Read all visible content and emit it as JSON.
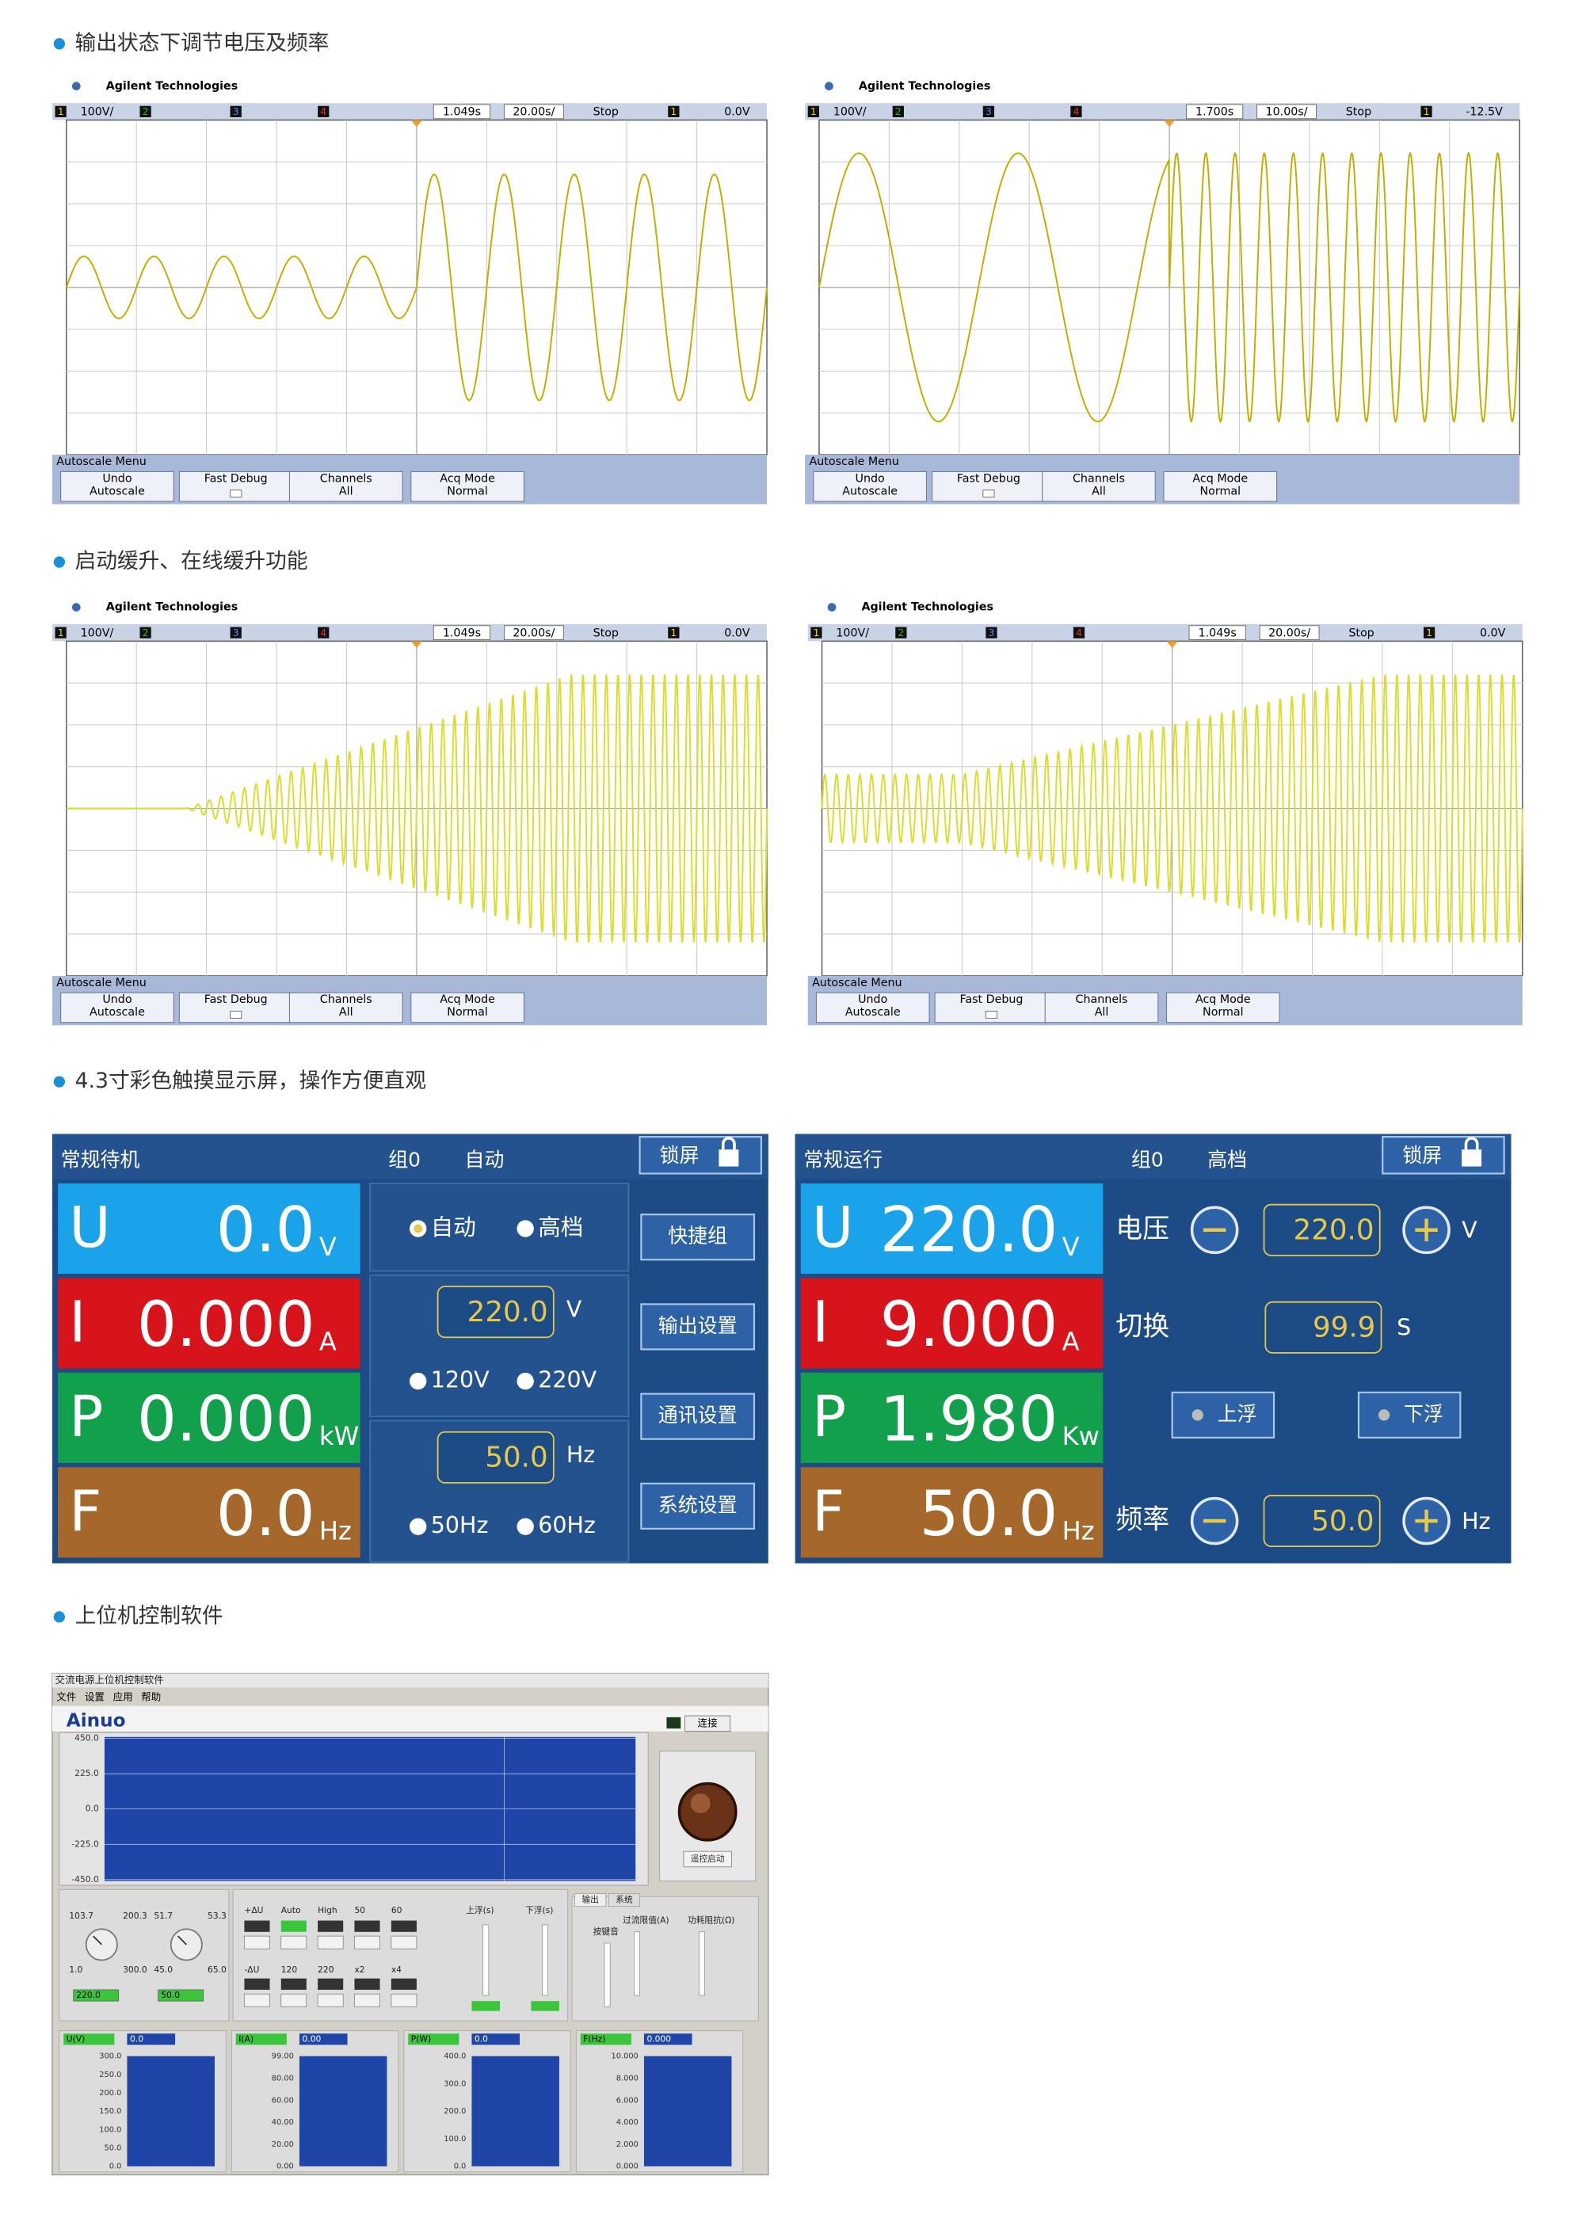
{
  "headings": [
    "输出状态下调节电压及频率",
    "启动缓升、在线缓升功能",
    "4.3寸彩色触摸显示屏，操作方便直观",
    "上位机控制软件"
  ],
  "scopes": [
    {
      "brand": "Agilent Technologies",
      "channels": [
        "1",
        "2",
        "3",
        "4"
      ],
      "scale": "100V/",
      "delay": "1.049s",
      "timebase": "20.00s/",
      "mode": "Stop",
      "trigger_channel": "1",
      "trigger_level": "0.0V",
      "menu_title": "Autoscale Menu",
      "buttons": [
        [
          "Undo",
          "Autoscale"
        ],
        [
          "Fast Debug"
        ],
        [
          "Channels",
          "All"
        ],
        [
          "Acq Mode",
          "Normal"
        ]
      ]
    },
    {
      "brand": "Agilent Technologies",
      "channels": [
        "1",
        "2",
        "3",
        "4"
      ],
      "scale": "100V/",
      "delay": "1.700s",
      "timebase": "10.00s/",
      "mode": "Stop",
      "trigger_channel": "1",
      "trigger_level": "-12.5V",
      "menu_title": "Autoscale Menu",
      "buttons": [
        [
          "Undo",
          "Autoscale"
        ],
        [
          "Fast Debug"
        ],
        [
          "Channels",
          "All"
        ],
        [
          "Acq Mode",
          "Normal"
        ]
      ]
    },
    {
      "brand": "Agilent Technologies",
      "channels": [
        "1",
        "2",
        "3",
        "4"
      ],
      "scale": "100V/",
      "delay": "1.049s",
      "timebase": "20.00s/",
      "mode": "Stop",
      "trigger_channel": "1",
      "trigger_level": "0.0V",
      "menu_title": "Autoscale Menu",
      "buttons": [
        [
          "Undo",
          "Autoscale"
        ],
        [
          "Fast Debug"
        ],
        [
          "Channels",
          "All"
        ],
        [
          "Acq Mode",
          "Normal"
        ]
      ]
    },
    {
      "brand": "Agilent Technologies",
      "channels": [
        "1",
        "2",
        "3",
        "4"
      ],
      "scale": "100V/",
      "delay": "1.049s",
      "timebase": "20.00s/",
      "mode": "Stop",
      "trigger_channel": "1",
      "trigger_level": "0.0V",
      "menu_title": "Autoscale Menu",
      "buttons": [
        [
          "Undo",
          "Autoscale"
        ],
        [
          "Fast Debug"
        ],
        [
          "Channels",
          "All"
        ],
        [
          "Acq Mode",
          "Normal"
        ]
      ]
    }
  ],
  "touch_screens": [
    {
      "status": "常规待机",
      "group": "组0",
      "mode": "自动",
      "lock": "锁屏",
      "readings": [
        {
          "symbol": "U",
          "value": "0.0",
          "unit": "V"
        },
        {
          "symbol": "I",
          "value": "0.000",
          "unit": "A"
        },
        {
          "symbol": "P",
          "value": "0.000",
          "unit": "kW"
        },
        {
          "symbol": "F",
          "value": "0.0",
          "unit": "Hz"
        }
      ],
      "range_options": [
        "自动",
        "高档"
      ],
      "voltage": {
        "value": "220.0",
        "unit": "V",
        "options": [
          "120V",
          "220V"
        ]
      },
      "frequency": {
        "value": "50.0",
        "unit": "Hz",
        "options": [
          "50Hz",
          "60Hz"
        ]
      },
      "menu": [
        "快捷组",
        "输出设置",
        "通讯设置",
        "系统设置"
      ]
    },
    {
      "status": "常规运行",
      "group": "组0",
      "mode": "高档",
      "lock": "锁屏",
      "readings": [
        {
          "symbol": "U",
          "value": "220.0",
          "unit": "V"
        },
        {
          "symbol": "I",
          "value": "9.000",
          "unit": "A"
        },
        {
          "symbol": "P",
          "value": "1.980",
          "unit": "Kw"
        },
        {
          "symbol": "F",
          "value": "50.0",
          "unit": "Hz"
        }
      ],
      "controls": [
        {
          "label": "电压",
          "value": "220.0",
          "unit": "V"
        },
        {
          "label": "切换",
          "value": "99.9",
          "unit": "S"
        },
        {
          "label": "频率",
          "value": "50.0",
          "unit": "Hz"
        }
      ],
      "float_buttons": [
        "上浮",
        "下浮"
      ]
    }
  ],
  "software": {
    "title": "交流电源上位机控制软件",
    "menu": [
      "文件",
      "设置",
      "应用",
      "帮助"
    ],
    "logo": "Ainuo",
    "connect": "连接",
    "graph_ticks": [
      "450.0",
      "225.0",
      "0.0",
      "-225.0",
      "-450.0"
    ],
    "remote_button": "遥控启动",
    "knobs": [
      {
        "labels": [
          "103.7",
          "200.3",
          "1.0",
          "300.0"
        ],
        "display": "220.0"
      },
      {
        "labels": [
          "51.7",
          "53.3",
          "45.0",
          "65.0"
        ],
        "display": "50.0"
      }
    ],
    "switch_labels_top": [
      "+ΔU",
      "Auto",
      "High",
      "50",
      "60"
    ],
    "switch_labels_bottom": [
      "-ΔU",
      "120",
      "220",
      "x2",
      "x4"
    ],
    "slider_labels": [
      "上浮(s)",
      "下浮(s)"
    ],
    "tabs": [
      "输出",
      "系统"
    ],
    "limit_labels": [
      "按键音",
      "过流限值(A)",
      "功耗阻抗(Ω)"
    ],
    "meters": [
      {
        "name": "U(V)",
        "value": "0.0",
        "ticks": [
          "300.0",
          "250.0",
          "200.0",
          "150.0",
          "100.0",
          "50.0",
          "0.0"
        ]
      },
      {
        "name": "I(A)",
        "value": "0.00",
        "ticks": [
          "99.00",
          "80.00",
          "60.00",
          "40.00",
          "20.00",
          "0.00"
        ]
      },
      {
        "name": "P(W)",
        "value": "0.0",
        "ticks": [
          "400.0",
          "300.0",
          "200.0",
          "100.0",
          "0.0"
        ]
      },
      {
        "name": "F(Hz)",
        "value": "0.000",
        "ticks": [
          "10.000",
          "8.000",
          "6.000",
          "4.000",
          "2.000",
          "0.000"
        ]
      }
    ]
  }
}
